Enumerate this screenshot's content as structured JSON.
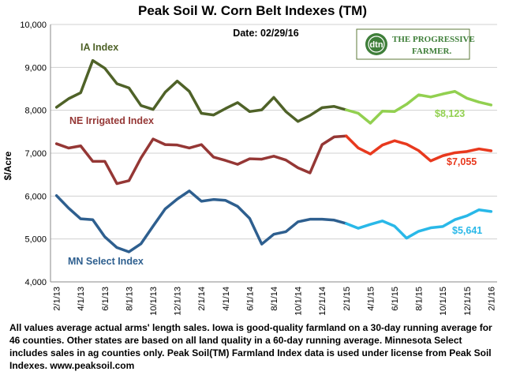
{
  "title": "Peak Soil W. Corn Belt Indexes (TM)",
  "date_label": "Date: 02/29/16",
  "logo": {
    "badge": "dtn",
    "line1": "THE PROGRESSIVE",
    "line2": "FARMER."
  },
  "footnote": "All values average actual arms' length sales. Iowa is good-quality farmland on a 30-day running average for 46 counties.  Other states are based on all land quality in a 60-day running average. Minnesota Select includes sales in ag counties only. Peak Soil(TM) Farmland Index data is used under license from Peak Soil Indexes.  www.peaksoil.com",
  "colors": {
    "ia_dark": "#4f6228",
    "ia_light": "#92d050",
    "ne_dark": "#953735",
    "ne_light": "#e8391e",
    "mn_dark": "#2e5f8f",
    "mn_light": "#29b8e8",
    "grid": "#d0d0d0"
  },
  "chart_data": {
    "type": "line",
    "title": "Peak Soil W. Corn Belt Indexes (TM)",
    "xlabel": "",
    "ylabel": "$/Acre",
    "ylim": [
      4000,
      10000
    ],
    "yticks": [
      "4,000",
      "5,000",
      "6,000",
      "7,000",
      "8,000",
      "9,000",
      "10,000"
    ],
    "x": [
      "2/1/13",
      "3/1/13",
      "4/1/13",
      "5/1/13",
      "6/1/13",
      "7/1/13",
      "8/1/13",
      "9/1/13",
      "10/1/13",
      "11/1/13",
      "12/1/13",
      "1/1/14",
      "2/1/14",
      "3/1/14",
      "4/1/14",
      "5/1/14",
      "6/1/14",
      "7/1/14",
      "8/1/14",
      "9/1/14",
      "10/1/14",
      "11/1/14",
      "12/1/14",
      "1/1/15",
      "2/1/15",
      "3/1/15",
      "4/1/15",
      "5/1/15",
      "6/1/15",
      "7/1/15",
      "8/1/15",
      "9/1/15",
      "10/1/15",
      "11/1/15",
      "12/1/15",
      "1/1/16",
      "2/1/16"
    ],
    "xtick_labels": [
      "2/1/13",
      "4/1/13",
      "6/1/13",
      "8/1/13",
      "10/1/13",
      "12/1/13",
      "2/1/14",
      "4/1/14",
      "6/1/14",
      "8/1/14",
      "10/1/14",
      "12/1/14",
      "2/1/15",
      "4/1/15",
      "6/1/15",
      "8/1/15",
      "10/1/15",
      "12/1/15",
      "2/1/16"
    ],
    "grid": true,
    "legend": "none",
    "series": [
      {
        "name": "IA Index",
        "end_label": "$8,123",
        "values": [
          8070,
          8270,
          8410,
          9160,
          8980,
          8620,
          8520,
          8110,
          8020,
          8420,
          8680,
          8440,
          7930,
          7890,
          8040,
          8180,
          7970,
          8010,
          8300,
          7970,
          7740,
          7880,
          8060,
          8090,
          8010,
          7930,
          7700,
          7980,
          7970,
          8140,
          8360,
          8310,
          8380,
          8440,
          8280,
          8190,
          8123
        ]
      },
      {
        "name": "NE Irrigated Index",
        "end_label": "$7,055",
        "values": [
          7220,
          7120,
          7170,
          6810,
          6810,
          6290,
          6360,
          6890,
          7330,
          7200,
          7190,
          7120,
          7200,
          6910,
          6830,
          6740,
          6870,
          6860,
          6930,
          6840,
          6660,
          6540,
          7200,
          7380,
          7400,
          7120,
          6980,
          7190,
          7290,
          7210,
          7060,
          6820,
          6940,
          7010,
          7040,
          7100,
          7055
        ]
      },
      {
        "name": "MN Select Index",
        "end_label": "$5,641",
        "values": [
          6010,
          5720,
          5470,
          5450,
          5050,
          4800,
          4700,
          4890,
          5300,
          5700,
          5930,
          6120,
          5880,
          5920,
          5900,
          5760,
          5480,
          4880,
          5110,
          5170,
          5400,
          5460,
          5460,
          5440,
          5360,
          5250,
          5340,
          5420,
          5300,
          5020,
          5180,
          5260,
          5290,
          5450,
          5540,
          5680,
          5641
        ]
      }
    ],
    "recent_start_index": 24
  }
}
